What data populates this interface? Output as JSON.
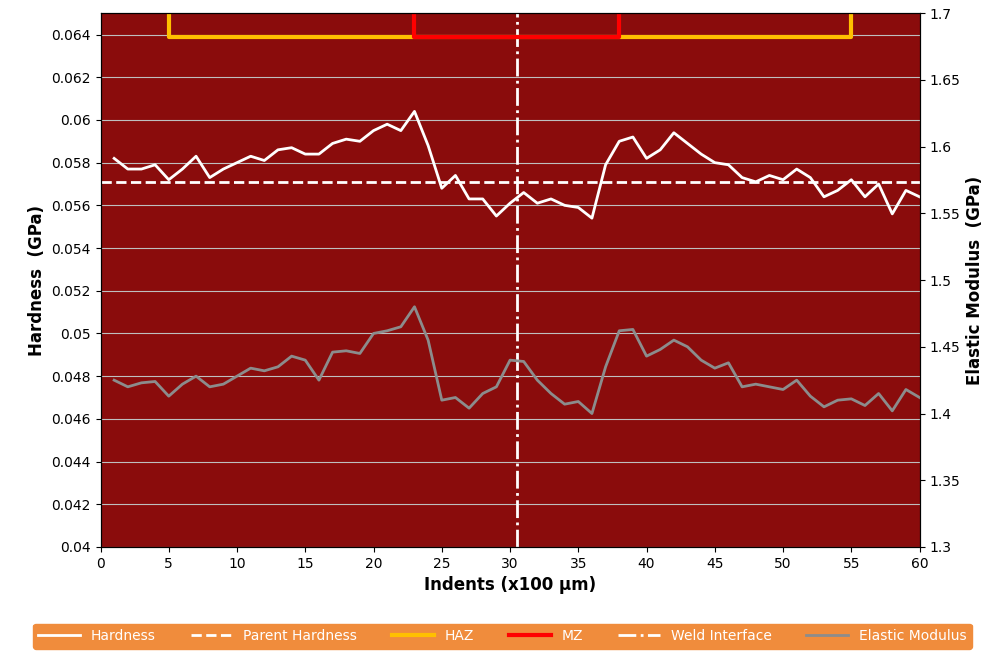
{
  "chart_data": {
    "type": "line",
    "xlabel": "Indents (x100 µm)",
    "ylabel": "Hardness  (GPa)",
    "y2label": "Elastic Modulus  (GPa)",
    "x": [
      1,
      2,
      3,
      4,
      5,
      6,
      7,
      8,
      9,
      10,
      11,
      12,
      13,
      14,
      15,
      16,
      17,
      18,
      19,
      20,
      21,
      22,
      23,
      24,
      25,
      26,
      27,
      28,
      29,
      30,
      31,
      32,
      33,
      34,
      35,
      36,
      37,
      38,
      39,
      40,
      41,
      42,
      43,
      44,
      45,
      46,
      47,
      48,
      49,
      50,
      51,
      52,
      53,
      54,
      55,
      56,
      57,
      58,
      59,
      60
    ],
    "series": [
      {
        "name": "Hardness",
        "color": "#ffffff",
        "line_style": "solid",
        "values": [
          0.0582,
          0.0577,
          0.0577,
          0.0579,
          0.0572,
          0.0577,
          0.0583,
          0.0573,
          0.0577,
          0.058,
          0.0583,
          0.0581,
          0.0586,
          0.0587,
          0.0584,
          0.0584,
          0.0589,
          0.0591,
          0.059,
          0.0595,
          0.0598,
          0.0595,
          0.0604,
          0.0588,
          0.0568,
          0.0574,
          0.0563,
          0.0563,
          0.0555,
          0.0561,
          0.0566,
          0.0561,
          0.0563,
          0.056,
          0.0559,
          0.0554,
          0.0579,
          0.059,
          0.0592,
          0.0582,
          0.0586,
          0.0594,
          0.0589,
          0.0584,
          0.058,
          0.0579,
          0.0573,
          0.0571,
          0.0574,
          0.0572,
          0.0577,
          0.0573,
          0.0564,
          0.0567,
          0.0572,
          0.0564,
          0.057,
          0.0556,
          0.0567,
          0.0564
        ]
      },
      {
        "name": "Elastic Modulus",
        "color": "#8c8c8c",
        "line_style": "solid",
        "axis": "y2",
        "values": [
          1.425,
          1.42,
          1.423,
          1.424,
          1.413,
          1.422,
          1.428,
          1.42,
          1.422,
          1.428,
          1.434,
          1.432,
          1.435,
          1.443,
          1.44,
          1.425,
          1.446,
          1.447,
          1.445,
          1.46,
          1.462,
          1.465,
          1.48,
          1.455,
          1.41,
          1.412,
          1.404,
          1.415,
          1.42,
          1.44,
          1.439,
          1.425,
          1.415,
          1.407,
          1.409,
          1.4,
          1.435,
          1.462,
          1.463,
          1.443,
          1.448,
          1.455,
          1.45,
          1.44,
          1.434,
          1.438,
          1.42,
          1.422,
          1.42,
          1.418,
          1.425,
          1.413,
          1.405,
          1.41,
          1.411,
          1.406,
          1.415,
          1.402,
          1.418,
          1.412
        ]
      }
    ],
    "parent_hardness": {
      "name": "Parent Hardness",
      "value": 0.0571,
      "color": "#ffffff",
      "line_style": "dashed"
    },
    "weld_interface": {
      "name": "Weld Interface",
      "x": 30.5,
      "color": "#ffffff",
      "line_style": "dashdot"
    },
    "zones": [
      {
        "name": "HAZ",
        "start": 5,
        "end": 55,
        "color": "#ffc000"
      },
      {
        "name": "MZ",
        "start": 23,
        "end": 38,
        "color": "#ff0000"
      }
    ],
    "xlim": [
      0,
      60
    ],
    "xticks": [
      0,
      5,
      10,
      15,
      20,
      25,
      30,
      35,
      40,
      45,
      50,
      55,
      60
    ],
    "ylim": [
      0.04,
      0.065
    ],
    "yticks": [
      0.04,
      0.042,
      0.044,
      0.046,
      0.048,
      0.05,
      0.052,
      0.054,
      0.056,
      0.058,
      0.06,
      0.062,
      0.064
    ],
    "y2lim": [
      1.3,
      1.7
    ],
    "y2ticks": [
      1.3,
      1.35,
      1.4,
      1.45,
      1.5,
      1.55,
      1.6,
      1.65,
      1.7
    ],
    "grid": true,
    "legend": "lower center"
  }
}
